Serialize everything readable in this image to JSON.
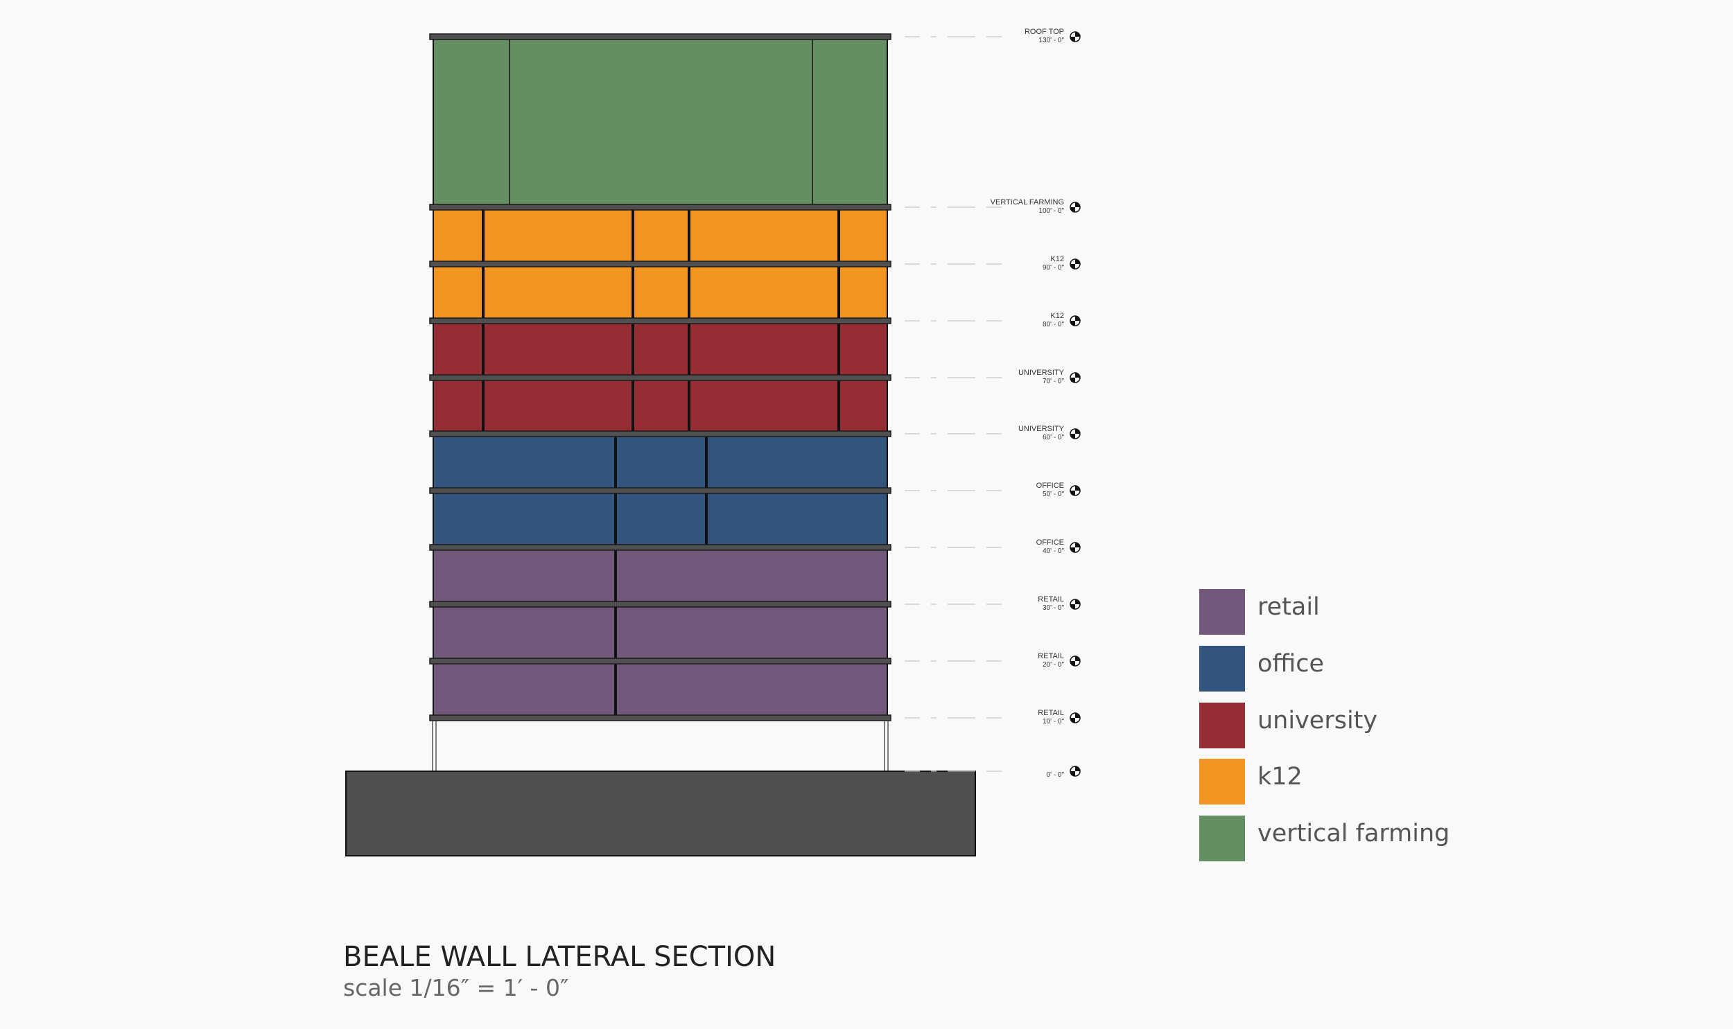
{
  "title": "BEALE WALL LATERAL SECTION",
  "scale": "scale 1/16″ = 1′ - 0″",
  "colors": {
    "retail": "#71587a",
    "office": "#33547c",
    "university": "#942e34",
    "k12": "#f19421",
    "vertical_farming": "#648f62",
    "slab": "#505050",
    "plinth": "#4f4f4f",
    "mullion": "#111111"
  },
  "legend": [
    {
      "key": "retail",
      "label": "retail",
      "color": "#71587a"
    },
    {
      "key": "office",
      "label": "office",
      "color": "#33547c"
    },
    {
      "key": "university",
      "label": "university",
      "color": "#942e34"
    },
    {
      "key": "k12",
      "label": "k12",
      "color": "#f19421"
    },
    {
      "key": "vertical_farming",
      "label": "vertical farming",
      "color": "#648f62"
    }
  ],
  "levels": [
    {
      "name": "ROOF TOP",
      "elevation": "130' - 0\""
    },
    {
      "name": "VERTICAL FARMING",
      "elevation": "100' - 0\""
    },
    {
      "name": "K12",
      "elevation": "90' - 0\""
    },
    {
      "name": "K12",
      "elevation": "80' - 0\""
    },
    {
      "name": "UNIVERSITY",
      "elevation": "70' - 0\""
    },
    {
      "name": "UNIVERSITY",
      "elevation": "60' - 0\""
    },
    {
      "name": "OFFICE",
      "elevation": "50' - 0\""
    },
    {
      "name": "OFFICE",
      "elevation": "40' - 0\""
    },
    {
      "name": "RETAIL",
      "elevation": "30' - 0\""
    },
    {
      "name": "RETAIL",
      "elevation": "20' - 0\""
    },
    {
      "name": "RETAIL",
      "elevation": "10' - 0\""
    },
    {
      "name": "",
      "elevation": "0' - 0\""
    }
  ],
  "floors": [
    {
      "use": "vertical_farming"
    },
    {
      "use": "k12"
    },
    {
      "use": "k12"
    },
    {
      "use": "university"
    },
    {
      "use": "university"
    },
    {
      "use": "office"
    },
    {
      "use": "office"
    },
    {
      "use": "retail"
    },
    {
      "use": "retail"
    },
    {
      "use": "retail"
    }
  ]
}
